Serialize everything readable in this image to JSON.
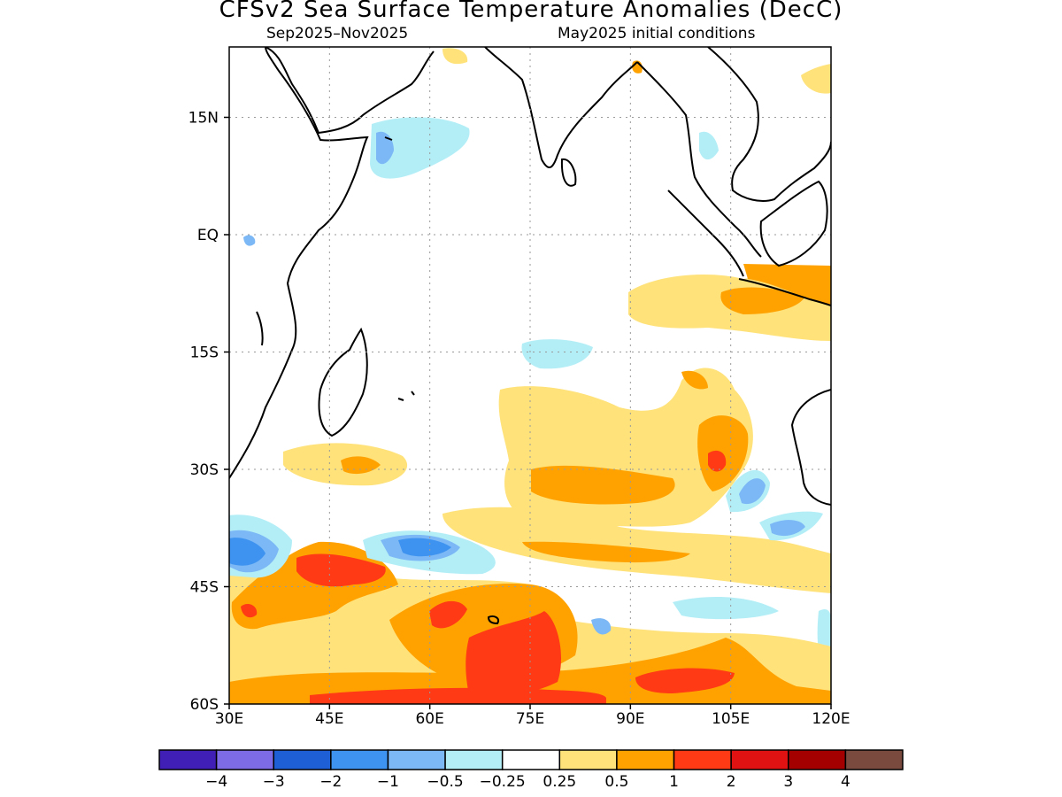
{
  "header": {
    "title": "CFSv2 Sea Surface Temperature Anomalies (DecC)",
    "period": "Sep2025–Nov2025",
    "init": "May2025 initial conditions"
  },
  "map": {
    "lon_range": [
      30,
      120
    ],
    "lat_range": [
      -60,
      24
    ],
    "x_ticks": [
      "30E",
      "45E",
      "60E",
      "75E",
      "90E",
      "105E",
      "120E"
    ],
    "y_ticks": [
      "15N",
      "EQ",
      "15S",
      "30S",
      "45S",
      "60S"
    ],
    "grid": "dotted",
    "units": "DecC"
  },
  "colorbar": {
    "colors": [
      "#3f1fb5",
      "#7d6be6",
      "#1f5fd6",
      "#3e93f0",
      "#7cb8f5",
      "#b3eef7",
      "#ffffff",
      "#ffe27a",
      "#ffa200",
      "#ff3a14",
      "#e01212",
      "#a50000",
      "#7a4a3e"
    ],
    "labels": [
      "−4",
      "−3",
      "−2",
      "−1",
      "−0.5",
      "−0.25",
      "0.25",
      "0.5",
      "1",
      "2",
      "3",
      "4"
    ]
  }
}
